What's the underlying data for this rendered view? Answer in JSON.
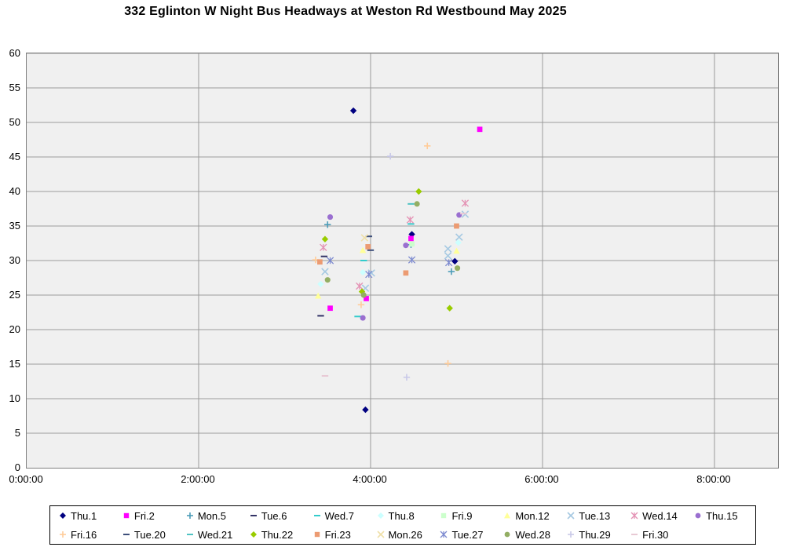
{
  "title": "332 Eglinton W Night Bus Headways at Weston Rd Westbound May 2025",
  "colors": {
    "plot_background": "#F0F0F0",
    "gridline": "#9B9B9B",
    "plot_border": "#808080",
    "legend_border": "#000000",
    "title_text": "#000000"
  },
  "chart_data": {
    "type": "scatter",
    "title": "332 Eglinton W Night Bus Headways at Weston Rd Westbound May 2025",
    "xlabel": "",
    "ylabel": "",
    "grid": true,
    "legend_position": "bottom",
    "x_axis": {
      "unit": "time-of-day (h:mm:ss)",
      "tick_labels": [
        "0:00:00",
        "2:00:00",
        "4:00:00",
        "6:00:00",
        "8:00:00"
      ],
      "tick_hours": [
        0,
        2,
        4,
        6,
        8
      ],
      "range_hours": [
        0,
        8.74
      ]
    },
    "y_axis": {
      "unit": "headway (minutes)",
      "tick_labels": [
        "0",
        "5",
        "10",
        "15",
        "20",
        "25",
        "30",
        "35",
        "40",
        "45",
        "50",
        "55",
        "60"
      ],
      "ticks": [
        0,
        5,
        10,
        15,
        20,
        25,
        30,
        35,
        40,
        45,
        50,
        55,
        60
      ],
      "range": [
        0,
        60
      ]
    },
    "series": [
      {
        "name": "Thu.1",
        "marker": "diamond",
        "color": "#000080",
        "points": [
          [
            3.8,
            51.7
          ],
          [
            4.48,
            33.8
          ],
          [
            4.98,
            29.9
          ],
          [
            3.94,
            8.4
          ]
        ]
      },
      {
        "name": "Fri.2",
        "marker": "square",
        "color": "#FF00FF",
        "points": [
          [
            5.27,
            49.0
          ],
          [
            4.47,
            33.2
          ],
          [
            3.95,
            24.5
          ],
          [
            3.53,
            23.1
          ]
        ]
      },
      {
        "name": "Mon.5",
        "marker": "plus",
        "color": "#4C9CB8",
        "points": [
          [
            3.5,
            35.2
          ],
          [
            4.47,
            32.3
          ],
          [
            4.94,
            28.4
          ]
        ]
      },
      {
        "name": "Tue.6",
        "marker": "dash",
        "color": "#333366",
        "points": [
          [
            3.46,
            30.6
          ],
          [
            3.42,
            22.0
          ]
        ]
      },
      {
        "name": "Wed.7",
        "marker": "dash",
        "color": "#33CCCC",
        "points": [
          [
            3.92,
            30.0
          ],
          [
            4.47,
            35.3
          ],
          [
            3.85,
            21.9
          ]
        ]
      },
      {
        "name": "Thu.8",
        "marker": "diamond",
        "color": "#CCFFFF",
        "points": [
          [
            3.91,
            28.3
          ],
          [
            3.42,
            26.6
          ],
          [
            5.02,
            32.6
          ]
        ]
      },
      {
        "name": "Fri.9",
        "marker": "square",
        "color": "#CCFFCC",
        "points": [
          [
            4.48,
            32.4
          ]
        ]
      },
      {
        "name": "Mon.12",
        "marker": "triangle",
        "color": "#FFFF99",
        "points": [
          [
            3.91,
            31.5
          ],
          [
            3.39,
            24.9
          ],
          [
            5.0,
            31.4
          ]
        ]
      },
      {
        "name": "Tue.13",
        "marker": "x",
        "color": "#A6C9E2",
        "points": [
          [
            3.47,
            28.4
          ],
          [
            4.01,
            28.2
          ],
          [
            4.9,
            30.7
          ],
          [
            4.9,
            31.7
          ],
          [
            5.03,
            33.4
          ],
          [
            5.1,
            36.7
          ],
          [
            3.94,
            26.0
          ]
        ]
      },
      {
        "name": "Wed.14",
        "marker": "star",
        "color": "#E492B4",
        "points": [
          [
            3.45,
            31.9
          ],
          [
            3.87,
            26.3
          ],
          [
            4.46,
            35.9
          ],
          [
            5.1,
            38.3
          ]
        ]
      },
      {
        "name": "Thu.15",
        "marker": "circle",
        "color": "#9A6FD0",
        "points": [
          [
            3.53,
            36.3
          ],
          [
            4.41,
            32.2
          ],
          [
            5.03,
            36.6
          ],
          [
            3.91,
            21.7
          ]
        ]
      },
      {
        "name": "Fri.16",
        "marker": "plus",
        "color": "#FFCC99",
        "points": [
          [
            4.66,
            46.6
          ],
          [
            3.89,
            23.6
          ],
          [
            4.9,
            15.1
          ],
          [
            3.36,
            30.1
          ]
        ]
      },
      {
        "name": "Tue.20",
        "marker": "dash",
        "color": "#3D4E7A",
        "points": [
          [
            3.98,
            33.5
          ],
          [
            4.0,
            31.5
          ]
        ]
      },
      {
        "name": "Wed.21",
        "marker": "dash",
        "color": "#4FC3C3",
        "points": [
          [
            4.47,
            38.2
          ]
        ]
      },
      {
        "name": "Thu.22",
        "marker": "diamond",
        "color": "#99CC00",
        "points": [
          [
            3.47,
            33.1
          ],
          [
            4.56,
            40.0
          ],
          [
            3.9,
            25.5
          ],
          [
            4.92,
            23.1
          ]
        ]
      },
      {
        "name": "Fri.23",
        "marker": "square",
        "color": "#EC9B72",
        "points": [
          [
            3.41,
            29.8
          ],
          [
            3.97,
            32.0
          ],
          [
            5.0,
            35.0
          ],
          [
            4.41,
            28.2
          ]
        ]
      },
      {
        "name": "Mon.26",
        "marker": "x",
        "color": "#EFE0A8",
        "points": [
          [
            3.93,
            33.3
          ]
        ]
      },
      {
        "name": "Tue.27",
        "marker": "star",
        "color": "#7E8BD0",
        "points": [
          [
            3.53,
            30.0
          ],
          [
            4.48,
            30.1
          ],
          [
            3.98,
            28.0
          ],
          [
            4.91,
            29.7
          ]
        ]
      },
      {
        "name": "Wed.28",
        "marker": "circle",
        "color": "#93AE63",
        "points": [
          [
            3.5,
            27.2
          ],
          [
            4.54,
            38.2
          ],
          [
            3.92,
            25.0
          ],
          [
            5.01,
            28.9
          ]
        ]
      },
      {
        "name": "Thu.29",
        "marker": "plus",
        "color": "#C9C9E8",
        "points": [
          [
            4.23,
            45.1
          ],
          [
            4.42,
            13.1
          ]
        ]
      },
      {
        "name": "Fri.30",
        "marker": "dash",
        "color": "#E8C9D4",
        "points": [
          [
            3.47,
            13.3
          ],
          [
            5.08,
            36.8
          ]
        ]
      }
    ]
  }
}
